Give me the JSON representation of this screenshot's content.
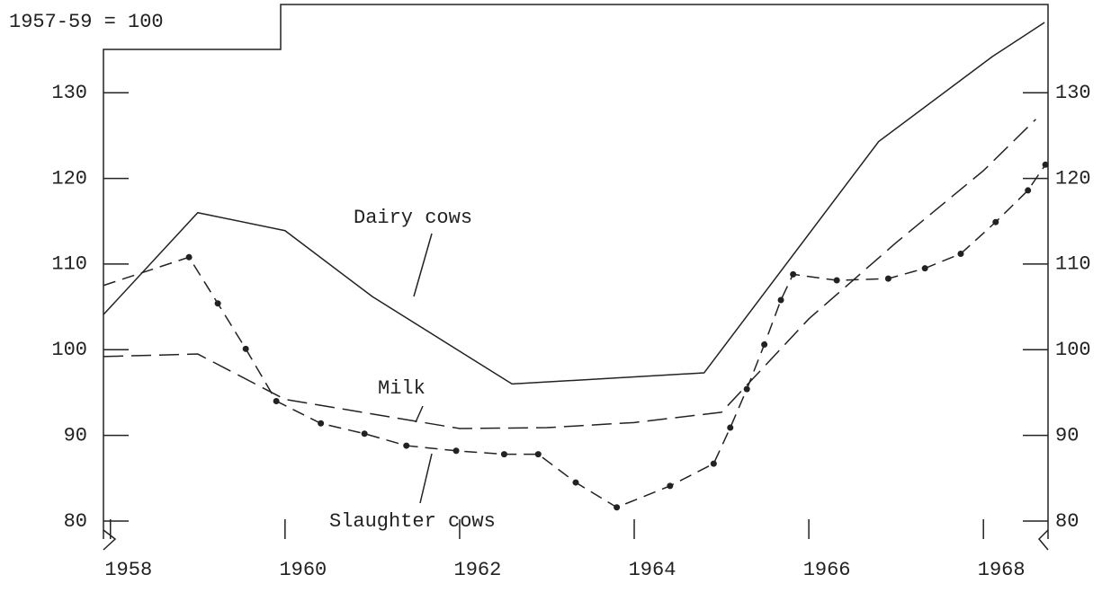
{
  "chart_data": {
    "type": "line",
    "annotations": {
      "base": "1957-59 = 100",
      "dairy": "Dairy cows",
      "milk": "Milk",
      "slaughter": "Slaughter cows"
    },
    "series": [
      {
        "name": "Dairy cows",
        "color": "#222222",
        "style": "solid",
        "x": [
          1957.92,
          1959,
          1960,
          1961,
          1962.6,
          1964.8,
          1966.8,
          1968.1,
          1968.7
        ],
        "values": [
          104.1,
          116.0,
          113.9,
          106.2,
          96.0,
          97.3,
          124.3,
          134.2,
          138.2
        ]
      },
      {
        "name": "Milk",
        "color": "#222222",
        "style": "dashed",
        "x": [
          1957.92,
          1959,
          1960,
          1962,
          1963,
          1964,
          1965,
          1966,
          1967,
          1968,
          1968.6
        ],
        "values": [
          99.2,
          99.5,
          94.2,
          90.8,
          90.9,
          91.5,
          92.7,
          103.6,
          112.5,
          120.9,
          126.9
        ]
      },
      {
        "name": "Slaughter cows",
        "color": "#222222",
        "style": "dotted",
        "x": [
          1957.92,
          1958.9,
          1959.23,
          1959.55,
          1959.9,
          1960.41,
          1960.91,
          1961.39,
          1961.96,
          1962.51,
          1962.9,
          1963.33,
          1963.8,
          1964.41,
          1964.91,
          1965.1,
          1965.29,
          1965.49,
          1965.68,
          1965.82,
          1966.32,
          1966.91,
          1967.33,
          1967.74,
          1968.14,
          1968.51,
          1968.71
        ],
        "values": [
          107.5,
          110.8,
          105.4,
          100.1,
          94.0,
          91.4,
          90.2,
          88.8,
          88.2,
          87.8,
          87.8,
          84.5,
          81.6,
          84.1,
          86.7,
          90.9,
          95.4,
          100.6,
          105.8,
          108.8,
          108.1,
          108.3,
          109.5,
          111.2,
          114.9,
          118.6,
          121.6
        ]
      }
    ],
    "xlim": [
      1957.92,
      1968.74
    ],
    "xticks": [
      1958,
      1960,
      1962,
      1964,
      1966,
      1968
    ],
    "ylim": [
      77.9,
      140.3
    ],
    "yticks": [
      80,
      90,
      100,
      110,
      120,
      130
    ],
    "y2lim": [
      77.9,
      140.3
    ],
    "y2ticks": [
      80,
      90,
      100,
      110,
      120,
      130
    ]
  }
}
